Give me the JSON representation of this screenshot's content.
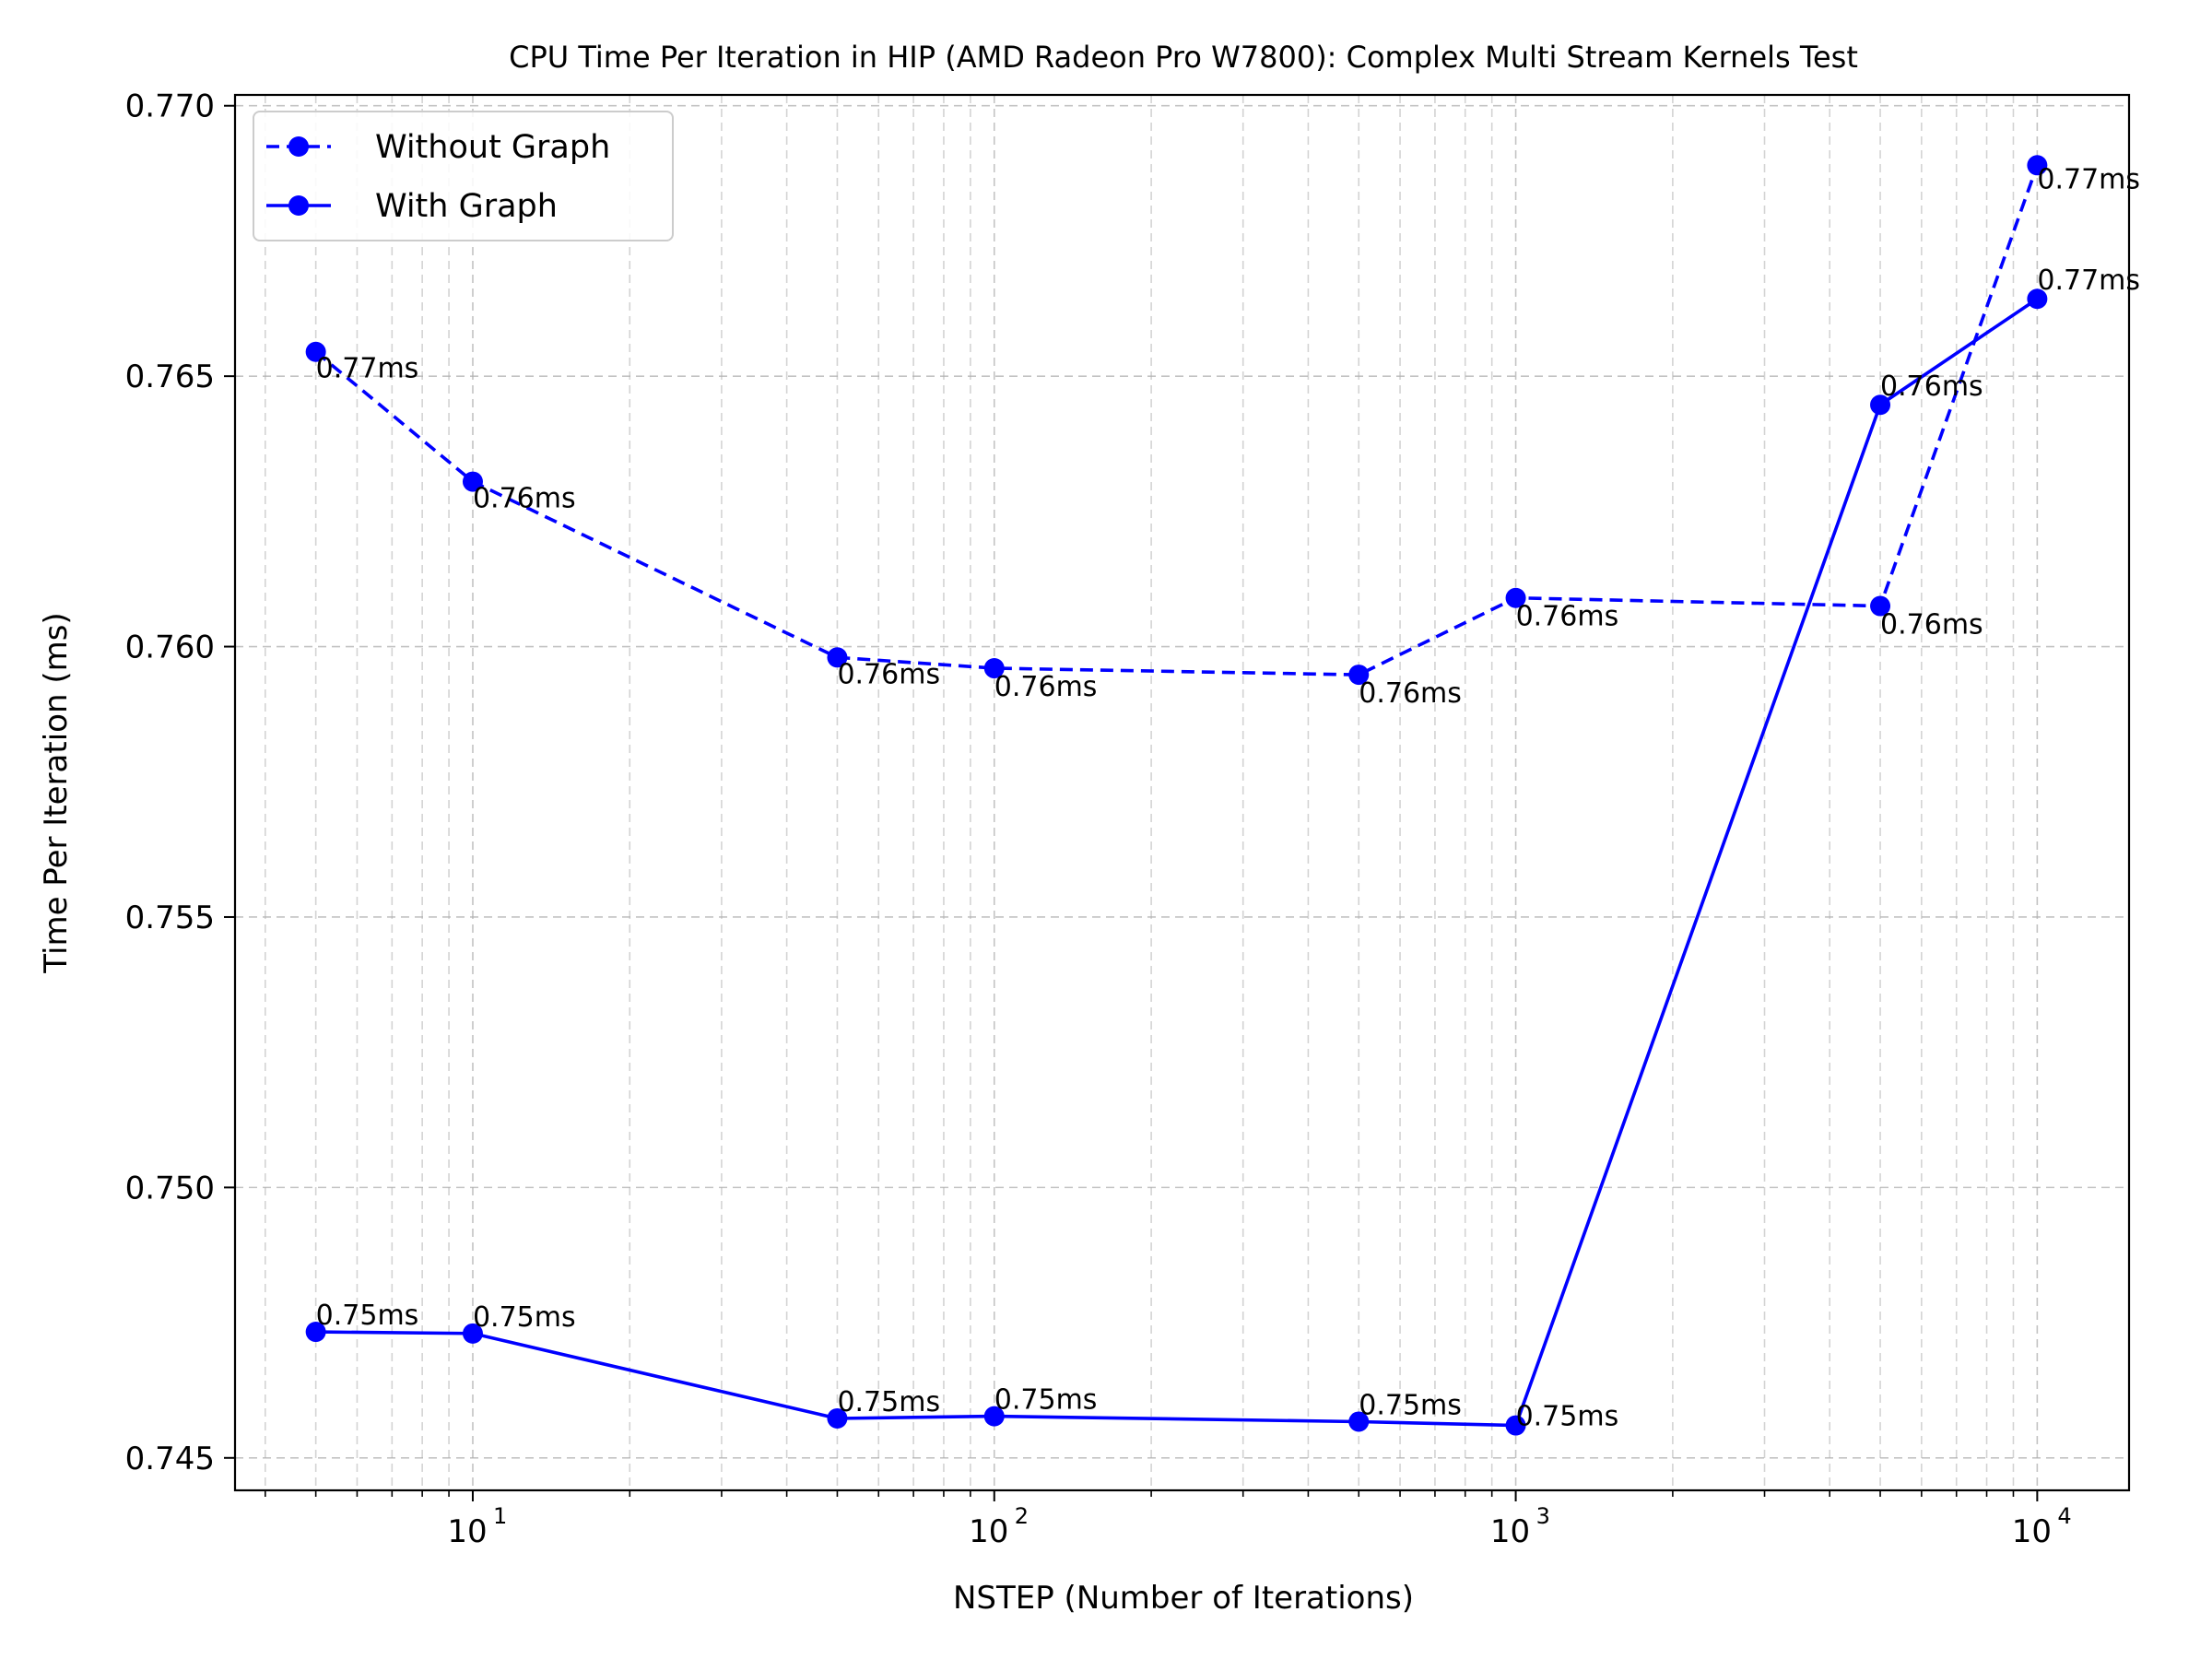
{
  "chart_data": {
    "type": "line",
    "title": "CPU Time Per Iteration in HIP (AMD Radeon Pro W7800): Complex Multi Stream Kernels Test",
    "xlabel": "NSTEP (Number of Iterations)",
    "ylabel": "Time Per Iteration (ms)",
    "x_scale": "log",
    "xlim": [
      3.5,
      15000
    ],
    "ylim": [
      0.7444,
      0.7702
    ],
    "grid": true,
    "legend_position": "upper left",
    "x_ticks": [
      {
        "base": "10",
        "exp": "1",
        "value": 10
      },
      {
        "base": "10",
        "exp": "2",
        "value": 100
      },
      {
        "base": "10",
        "exp": "3",
        "value": 1000
      },
      {
        "base": "10",
        "exp": "4",
        "value": 10000
      }
    ],
    "y_ticks": [
      {
        "label": "0.745",
        "value": 0.745
      },
      {
        "label": "0.750",
        "value": 0.75
      },
      {
        "label": "0.755",
        "value": 0.755
      },
      {
        "label": "0.760",
        "value": 0.76
      },
      {
        "label": "0.765",
        "value": 0.765
      },
      {
        "label": "0.770",
        "value": 0.77
      }
    ],
    "x": [
      5,
      10,
      50,
      100,
      500,
      1000,
      5000,
      10000
    ],
    "series": [
      {
        "name": "Without Graph",
        "color": "#0000ff",
        "linestyle": "dashed",
        "marker": "circle",
        "values": [
          0.76545,
          0.76305,
          0.7598,
          0.7596,
          0.75948,
          0.7609,
          0.76075,
          0.7689
        ],
        "labels": [
          "0.77ms",
          "0.76ms",
          "0.76ms",
          "0.76ms",
          "0.76ms",
          "0.76ms",
          "0.76ms",
          "0.77ms"
        ]
      },
      {
        "name": "With Graph",
        "color": "#0000ff",
        "linestyle": "solid",
        "marker": "circle",
        "values": [
          0.74733,
          0.7473,
          0.74573,
          0.74577,
          0.74567,
          0.7456,
          0.76447,
          0.76643
        ],
        "labels": [
          "0.75ms",
          "0.75ms",
          "0.75ms",
          "0.75ms",
          "0.75ms",
          "0.75ms",
          "0.76ms",
          "0.77ms"
        ]
      }
    ]
  }
}
